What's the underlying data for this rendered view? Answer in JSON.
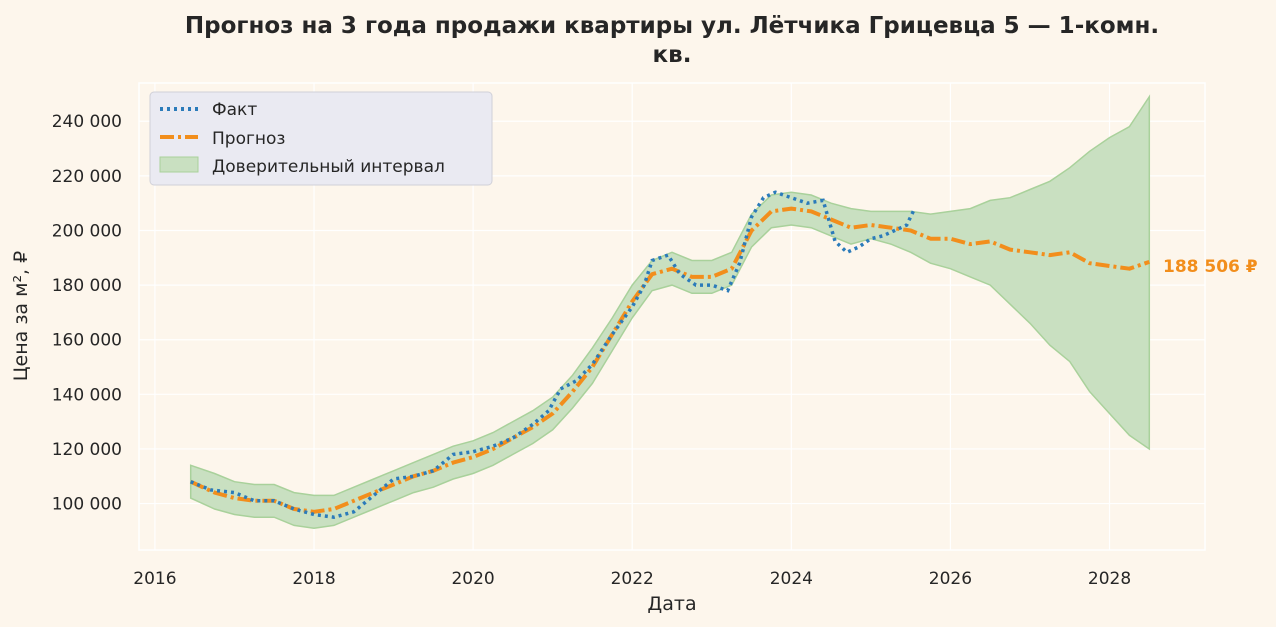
{
  "chart_data": {
    "type": "line",
    "title_line1": "Прогноз на 3 года продажи квартиры  ул. Лётчика Грицевца 5 — 1-комн.",
    "title_line2": "кв.",
    "xlabel": "Дата",
    "ylabel": "Цена за м², ₽",
    "xlim": [
      2015.8,
      2029.2
    ],
    "ylim": [
      83000,
      254000
    ],
    "x_ticks": [
      2016,
      2018,
      2020,
      2022,
      2024,
      2026,
      2028
    ],
    "x_tick_labels": [
      "2016",
      "2018",
      "2020",
      "2022",
      "2024",
      "2026",
      "2028"
    ],
    "y_ticks": [
      100000,
      120000,
      140000,
      160000,
      180000,
      200000,
      220000,
      240000
    ],
    "y_tick_labels": [
      "100 000",
      "120 000",
      "140 000",
      "160 000",
      "180 000",
      "200 000",
      "220 000",
      "240 000"
    ],
    "grid": true,
    "legend_position": "top-left",
    "legend": {
      "fact": "Факт",
      "forecast": "Прогноз",
      "interval": "Доверительный интервал"
    },
    "colors": {
      "fact": "#2b7bba",
      "forecast": "#f28e1c",
      "interval_fill": "#c9e0c1",
      "interval_edge": "#a9d19b",
      "plot_bg": "#fdf6ec",
      "grid": "#ffffff"
    },
    "end_label": "188 506 ₽",
    "series": [
      {
        "key": "fact",
        "x": [
          2016.45,
          2016.7,
          2017.0,
          2017.25,
          2017.5,
          2017.75,
          2018.0,
          2018.25,
          2018.5,
          2018.75,
          2019.0,
          2019.25,
          2019.5,
          2019.75,
          2020.0,
          2020.25,
          2020.5,
          2020.75,
          2020.95,
          2021.1,
          2021.3,
          2021.5,
          2021.75,
          2022.0,
          2022.15,
          2022.25,
          2022.45,
          2022.6,
          2022.8,
          2023.0,
          2023.2,
          2023.35,
          2023.5,
          2023.65,
          2023.8,
          2024.0,
          2024.2,
          2024.4,
          2024.55,
          2024.7,
          2024.85,
          2025.0,
          2025.15,
          2025.3,
          2025.45,
          2025.55
        ],
        "values": [
          108000,
          105000,
          104000,
          101000,
          101000,
          98000,
          96000,
          95000,
          97000,
          103000,
          109000,
          110000,
          112000,
          118000,
          119000,
          121000,
          124000,
          129000,
          134000,
          142000,
          145000,
          151000,
          162000,
          172000,
          180000,
          189000,
          191000,
          184000,
          180000,
          180000,
          178000,
          188000,
          205000,
          212000,
          214000,
          212000,
          210000,
          211000,
          196000,
          192000,
          194000,
          197000,
          198000,
          200000,
          202000,
          208000
        ]
      },
      {
        "key": "forecast",
        "x": [
          2016.45,
          2016.75,
          2017.0,
          2017.25,
          2017.5,
          2017.75,
          2018.0,
          2018.25,
          2018.5,
          2018.75,
          2019.0,
          2019.25,
          2019.5,
          2019.75,
          2020.0,
          2020.25,
          2020.5,
          2020.75,
          2021.0,
          2021.25,
          2021.5,
          2021.75,
          2022.0,
          2022.25,
          2022.5,
          2022.75,
          2023.0,
          2023.25,
          2023.5,
          2023.75,
          2024.0,
          2024.25,
          2024.5,
          2024.75,
          2025.0,
          2025.25,
          2025.5,
          2025.75,
          2026.0,
          2026.25,
          2026.5,
          2026.75,
          2027.0,
          2027.25,
          2027.5,
          2027.75,
          2028.0,
          2028.25,
          2028.5
        ],
        "values": [
          108000,
          104000,
          102000,
          101000,
          101000,
          98000,
          97000,
          98000,
          101000,
          104000,
          107000,
          110000,
          112000,
          115000,
          117000,
          120000,
          124000,
          128000,
          133000,
          141000,
          150000,
          162000,
          174000,
          184000,
          186000,
          183000,
          183000,
          186000,
          200000,
          207000,
          208000,
          207000,
          204000,
          201000,
          202000,
          201000,
          200000,
          197000,
          197000,
          195000,
          196000,
          193000,
          192000,
          191000,
          192000,
          188000,
          187000,
          186000,
          188506
        ]
      },
      {
        "key": "interval_upper",
        "x": [
          2016.45,
          2016.75,
          2017.0,
          2017.25,
          2017.5,
          2017.75,
          2018.0,
          2018.25,
          2018.5,
          2018.75,
          2019.0,
          2019.25,
          2019.5,
          2019.75,
          2020.0,
          2020.25,
          2020.5,
          2020.75,
          2021.0,
          2021.25,
          2021.5,
          2021.75,
          2022.0,
          2022.25,
          2022.5,
          2022.75,
          2023.0,
          2023.25,
          2023.5,
          2023.75,
          2024.0,
          2024.25,
          2024.5,
          2024.75,
          2025.0,
          2025.25,
          2025.5,
          2025.75,
          2026.0,
          2026.25,
          2026.5,
          2026.75,
          2027.0,
          2027.25,
          2027.5,
          2027.75,
          2028.0,
          2028.25,
          2028.5
        ],
        "values": [
          114000,
          111000,
          108000,
          107000,
          107000,
          104000,
          103000,
          103000,
          106000,
          109000,
          112000,
          115000,
          118000,
          121000,
          123000,
          126000,
          130000,
          134000,
          139000,
          147000,
          157000,
          168000,
          180000,
          189000,
          192000,
          189000,
          189000,
          192000,
          206000,
          213000,
          214000,
          213000,
          210000,
          208000,
          207000,
          207000,
          207000,
          206000,
          207000,
          208000,
          211000,
          212000,
          215000,
          218000,
          223000,
          229000,
          234000,
          238000,
          249000
        ]
      },
      {
        "key": "interval_lower",
        "x": [
          2016.45,
          2016.75,
          2017.0,
          2017.25,
          2017.5,
          2017.75,
          2018.0,
          2018.25,
          2018.5,
          2018.75,
          2019.0,
          2019.25,
          2019.5,
          2019.75,
          2020.0,
          2020.25,
          2020.5,
          2020.75,
          2021.0,
          2021.25,
          2021.5,
          2021.75,
          2022.0,
          2022.25,
          2022.5,
          2022.75,
          2023.0,
          2023.25,
          2023.5,
          2023.75,
          2024.0,
          2024.25,
          2024.5,
          2024.75,
          2025.0,
          2025.25,
          2025.5,
          2025.75,
          2026.0,
          2026.25,
          2026.5,
          2026.75,
          2027.0,
          2027.25,
          2027.5,
          2027.75,
          2028.0,
          2028.25,
          2028.5
        ],
        "values": [
          102000,
          98000,
          96000,
          95000,
          95000,
          92000,
          91000,
          92000,
          95000,
          98000,
          101000,
          104000,
          106000,
          109000,
          111000,
          114000,
          118000,
          122000,
          127000,
          135000,
          144000,
          156000,
          168000,
          178000,
          180000,
          177000,
          177000,
          180000,
          194000,
          201000,
          202000,
          201000,
          198000,
          195000,
          197000,
          195000,
          192000,
          188000,
          186000,
          183000,
          180000,
          173000,
          166000,
          158000,
          152000,
          141000,
          133000,
          125000,
          120000
        ]
      }
    ]
  }
}
